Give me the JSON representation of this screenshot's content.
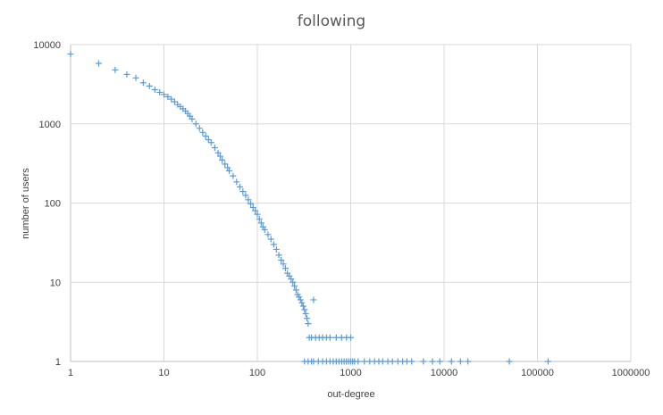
{
  "chart_data": {
    "type": "scatter",
    "title": "following",
    "xlabel": "out-degree",
    "ylabel": "number of users",
    "x_scale": "log",
    "y_scale": "log",
    "xlim": [
      1,
      1000000
    ],
    "ylim": [
      1,
      10000
    ],
    "x_ticks": [
      "1",
      "10",
      "100",
      "1000",
      "10000",
      "100000",
      "1000000"
    ],
    "y_ticks": [
      "1",
      "10",
      "100",
      "1000",
      "10000"
    ],
    "grid": true,
    "legend": "none",
    "marker": "plus",
    "series_color": "#5b9bd5",
    "points": [
      [
        1,
        7600
      ],
      [
        2,
        5800
      ],
      [
        3,
        4800
      ],
      [
        4,
        4200
      ],
      [
        5,
        3800
      ],
      [
        6,
        3300
      ],
      [
        7,
        3000
      ],
      [
        8,
        2700
      ],
      [
        9,
        2500
      ],
      [
        10,
        2350
      ],
      [
        11,
        2200
      ],
      [
        12,
        2050
      ],
      [
        13,
        1900
      ],
      [
        14,
        1750
      ],
      [
        15,
        1650
      ],
      [
        16,
        1550
      ],
      [
        17,
        1450
      ],
      [
        18,
        1350
      ],
      [
        19,
        1250
      ],
      [
        20,
        1150
      ],
      [
        22,
        1000
      ],
      [
        24,
        880
      ],
      [
        26,
        780
      ],
      [
        28,
        700
      ],
      [
        30,
        630
      ],
      [
        32,
        580
      ],
      [
        35,
        500
      ],
      [
        38,
        430
      ],
      [
        40,
        390
      ],
      [
        42,
        350
      ],
      [
        45,
        310
      ],
      [
        48,
        280
      ],
      [
        50,
        255
      ],
      [
        55,
        220
      ],
      [
        60,
        185
      ],
      [
        65,
        160
      ],
      [
        70,
        140
      ],
      [
        75,
        125
      ],
      [
        80,
        110
      ],
      [
        85,
        98
      ],
      [
        90,
        88
      ],
      [
        95,
        80
      ],
      [
        100,
        72
      ],
      [
        105,
        63
      ],
      [
        110,
        56
      ],
      [
        115,
        50
      ],
      [
        120,
        46
      ],
      [
        130,
        40
      ],
      [
        140,
        35
      ],
      [
        150,
        30
      ],
      [
        160,
        26
      ],
      [
        170,
        22
      ],
      [
        180,
        19
      ],
      [
        190,
        17
      ],
      [
        200,
        15
      ],
      [
        210,
        13
      ],
      [
        220,
        12
      ],
      [
        230,
        11
      ],
      [
        240,
        10
      ],
      [
        250,
        9
      ],
      [
        260,
        8
      ],
      [
        270,
        7
      ],
      [
        280,
        6.5
      ],
      [
        290,
        6
      ],
      [
        300,
        5.5
      ],
      [
        310,
        5
      ],
      [
        320,
        4.5
      ],
      [
        330,
        4
      ],
      [
        340,
        3.5
      ],
      [
        350,
        3
      ],
      [
        400,
        6
      ],
      [
        360,
        2
      ],
      [
        380,
        2
      ],
      [
        420,
        2
      ],
      [
        460,
        2
      ],
      [
        500,
        2
      ],
      [
        550,
        2
      ],
      [
        600,
        2
      ],
      [
        700,
        2
      ],
      [
        800,
        2
      ],
      [
        900,
        2
      ],
      [
        1000,
        2
      ],
      [
        320,
        1
      ],
      [
        350,
        1
      ],
      [
        380,
        1
      ],
      [
        400,
        1
      ],
      [
        450,
        1
      ],
      [
        500,
        1
      ],
      [
        550,
        1
      ],
      [
        600,
        1
      ],
      [
        650,
        1
      ],
      [
        700,
        1
      ],
      [
        750,
        1
      ],
      [
        800,
        1
      ],
      [
        850,
        1
      ],
      [
        900,
        1
      ],
      [
        950,
        1
      ],
      [
        1000,
        1
      ],
      [
        1050,
        1
      ],
      [
        1100,
        1
      ],
      [
        1200,
        1
      ],
      [
        1400,
        1
      ],
      [
        1600,
        1
      ],
      [
        1800,
        1
      ],
      [
        2000,
        1
      ],
      [
        2200,
        1
      ],
      [
        2500,
        1
      ],
      [
        2800,
        1
      ],
      [
        3200,
        1
      ],
      [
        3600,
        1
      ],
      [
        4000,
        1
      ],
      [
        4500,
        1
      ],
      [
        6000,
        1
      ],
      [
        7500,
        1
      ],
      [
        9000,
        1
      ],
      [
        12000,
        1
      ],
      [
        15000,
        1
      ],
      [
        18000,
        1
      ],
      [
        50000,
        1
      ],
      [
        130000,
        1
      ]
    ]
  }
}
